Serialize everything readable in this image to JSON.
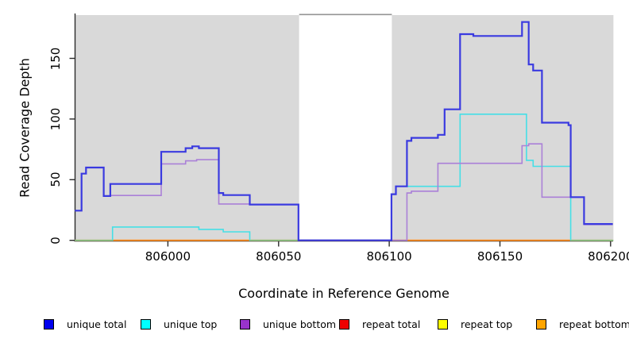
{
  "chart_data": {
    "type": "line",
    "subtype": "step-coverage",
    "title": "",
    "xlabel": "Coordinate in Reference Genome",
    "ylabel": "Read Coverage Depth",
    "xlim": [
      805958,
      806201
    ],
    "ylim": [
      0,
      186
    ],
    "grid": false,
    "x_ticks": [
      806000,
      806050,
      806100,
      806150,
      806200
    ],
    "x_tick_labels": [
      "806000",
      "806050",
      "806100",
      "806150",
      "806200"
    ],
    "y_ticks": [
      0,
      50,
      100,
      150
    ],
    "y_tick_labels": [
      "0",
      "50",
      "100",
      "150"
    ],
    "plot_bg_color": "#ffffff",
    "shaded_region_color": "#d9d9d9",
    "shaded_regions": [
      {
        "x0": 805958,
        "x1": 806059.3
      },
      {
        "x0": 806101.2,
        "x1": 806201.3
      }
    ],
    "gap_top_border": {
      "x0": 806059.3,
      "x1": 806101.2,
      "color": "#949494"
    },
    "series": [
      {
        "name": "repeat total",
        "color": "#dd0000",
        "width": 1.4,
        "points": [
          [
            805958,
            0
          ],
          [
            806201,
            0
          ]
        ]
      },
      {
        "name": "repeat top",
        "color": "#ffff00",
        "width": 1.4,
        "points": [
          [
            805958,
            0
          ],
          [
            806201,
            0
          ]
        ]
      },
      {
        "name": "repeat bottom",
        "color": "#ff8c1e",
        "width": 1.8,
        "points": [
          [
            805958,
            0
          ],
          [
            806201,
            0
          ]
        ]
      },
      {
        "name": "unique top",
        "color": "#45dfe6",
        "width": 1.6,
        "points": [
          [
            805958,
            0
          ],
          [
            805975,
            11
          ],
          [
            806014,
            9
          ],
          [
            806025,
            7
          ],
          [
            806037,
            0
          ],
          [
            806101,
            38
          ],
          [
            806103,
            44.5
          ],
          [
            806132,
            104
          ],
          [
            806162,
            66
          ],
          [
            806165,
            61
          ],
          [
            806182,
            0
          ],
          [
            806201,
            0
          ]
        ]
      },
      {
        "name": "baseline overlap green",
        "color": "#8fd08f",
        "width": 1.5,
        "segments": [
          [
            805958,
            805975
          ],
          [
            806037,
            806059.3
          ],
          [
            806182,
            806201.3
          ]
        ]
      },
      {
        "name": "unique bottom",
        "color": "#aa80d8",
        "width": 1.6,
        "points": [
          [
            805958,
            24.5
          ],
          [
            805961,
            55
          ],
          [
            805963,
            60
          ],
          [
            805971,
            36.5
          ],
          [
            805974,
            37
          ],
          [
            805997,
            63
          ],
          [
            806008,
            65.5
          ],
          [
            806013,
            66.5
          ],
          [
            806023,
            30
          ],
          [
            806037,
            29.5
          ],
          [
            806059,
            0
          ],
          [
            806108,
            39
          ],
          [
            806110,
            40.5
          ],
          [
            806122,
            63.5
          ],
          [
            806160,
            78
          ],
          [
            806163,
            79.5
          ],
          [
            806169,
            35.6
          ],
          [
            806188,
            13
          ],
          [
            806201,
            13
          ]
        ]
      },
      {
        "name": "unique total",
        "color": "#3a3ae0",
        "width": 2.2,
        "points": [
          [
            805958,
            24.5
          ],
          [
            805961,
            55
          ],
          [
            805963,
            60
          ],
          [
            805971,
            36.5
          ],
          [
            805974,
            46.5
          ],
          [
            805997,
            73
          ],
          [
            806008,
            76
          ],
          [
            806011,
            77.5
          ],
          [
            806014,
            76
          ],
          [
            806023,
            39
          ],
          [
            806025,
            37.3
          ],
          [
            806037,
            29.5
          ],
          [
            806059,
            0
          ],
          [
            806101,
            38
          ],
          [
            806103,
            44.5
          ],
          [
            806108,
            82
          ],
          [
            806110,
            84.5
          ],
          [
            806122,
            87
          ],
          [
            806125,
            108
          ],
          [
            806132,
            170
          ],
          [
            806138,
            168.5
          ],
          [
            806160,
            180
          ],
          [
            806163,
            145
          ],
          [
            806165,
            140
          ],
          [
            806169,
            97
          ],
          [
            806181,
            95
          ],
          [
            806182,
            35.6
          ],
          [
            806188,
            13.5
          ],
          [
            806201,
            13.5
          ]
        ]
      }
    ]
  },
  "legend": {
    "items": [
      {
        "label": "unique total",
        "color": "#0000ee"
      },
      {
        "label": "unique top",
        "color": "#00ffff"
      },
      {
        "label": "unique bottom",
        "color": "#9933cc"
      },
      {
        "label": "repeat total",
        "color": "#ee0000"
      },
      {
        "label": "repeat top",
        "color": "#ffff00"
      },
      {
        "label": "repeat bottom",
        "color": "#ffa500"
      }
    ]
  }
}
